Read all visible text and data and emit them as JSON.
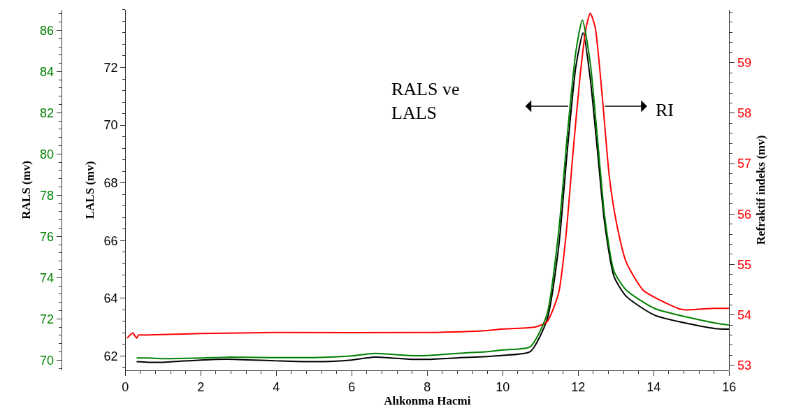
{
  "chart_data": {
    "type": "line",
    "xlabel": "Alıkonma Hacmi",
    "ylabel": "LALS (mv)",
    "y2label": "Refraktif indeks (mv)",
    "y3label": "RALS (mv)",
    "annotations": [
      "RALS ve\nLALS",
      "RI"
    ],
    "xlim": [
      0,
      16
    ],
    "xticks": [
      0,
      2,
      4,
      6,
      8,
      10,
      12,
      14,
      16
    ],
    "ylim": [
      61.5,
      74.0
    ],
    "yticks": [
      62,
      64,
      66,
      68,
      70,
      72
    ],
    "y2lim": [
      52.9,
      60.05
    ],
    "y2ticks": [
      53,
      54,
      55,
      56,
      57,
      58,
      59
    ],
    "y3lim": [
      69.5,
      87.0
    ],
    "y3ticks": [
      70,
      72,
      74,
      76,
      78,
      80,
      82,
      84,
      86
    ],
    "series": [
      {
        "color": "#008000",
        "axis": "y3",
        "x": [
          0.3,
          0.6,
          1,
          2,
          2.7,
          4,
          5,
          6,
          6.6,
          7.5,
          8,
          9,
          9.59,
          10,
          10.73,
          11.17,
          11.48,
          11.71,
          11.94,
          12.11,
          12.32,
          12.51,
          12.7,
          12.95,
          13.27,
          14.03,
          15.62,
          16
        ],
        "values": [
          70.1,
          70.1,
          70.07,
          70.1,
          70.14,
          70.12,
          70.12,
          70.2,
          70.32,
          70.22,
          70.22,
          70.35,
          70.41,
          70.49,
          70.65,
          72.2,
          76.2,
          80.9,
          85.0,
          86.5,
          84.4,
          80.76,
          77.0,
          74.3,
          73.4,
          72.5,
          71.8,
          71.7
        ]
      },
      {
        "color": "#ff0000",
        "axis": "y2",
        "x": [
          0.05,
          0.2,
          0.3,
          0.35,
          0.5,
          2,
          4,
          8,
          9.59,
          10,
          10.86,
          11.17,
          11.48,
          11.67,
          11.86,
          12.05,
          12.21,
          12.32,
          12.45,
          12.64,
          12.83,
          13.02,
          13.27,
          13.72,
          14.17,
          14.68,
          14.87,
          15.31,
          15.62,
          16
        ],
        "values": [
          53.54,
          53.64,
          53.54,
          53.6,
          53.6,
          53.63,
          53.65,
          53.65,
          53.69,
          53.72,
          53.76,
          53.86,
          54.43,
          55.53,
          57.2,
          58.74,
          59.7,
          59.98,
          59.7,
          58.3,
          56.7,
          55.8,
          55.05,
          54.49,
          54.29,
          54.12,
          54.1,
          54.12,
          54.13,
          54.13
        ]
      },
      {
        "color": "#000000",
        "axis": "y",
        "x": [
          0.3,
          0.6,
          1,
          2,
          2.7,
          4,
          5,
          6,
          6.6,
          7.5,
          8,
          9,
          9.59,
          10,
          10.73,
          11.17,
          11.48,
          11.71,
          11.94,
          12.13,
          12.32,
          12.51,
          12.7,
          12.95,
          13.27,
          14.03,
          15.62,
          16
        ],
        "values": [
          61.8,
          61.78,
          61.78,
          61.86,
          61.89,
          61.83,
          61.8,
          61.86,
          61.96,
          61.89,
          61.88,
          61.95,
          61.98,
          62.02,
          62.15,
          63.24,
          65.75,
          69.1,
          72.05,
          73.2,
          71.6,
          69.1,
          66.6,
          64.75,
          64.07,
          63.41,
          62.95,
          62.93
        ]
      }
    ]
  }
}
